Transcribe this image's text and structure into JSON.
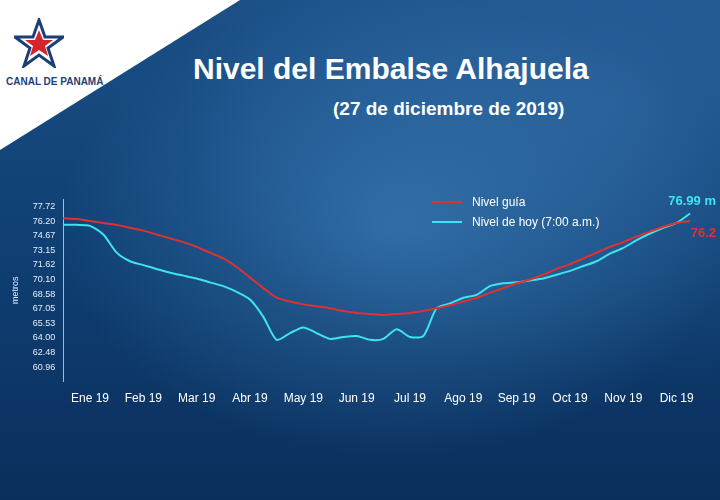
{
  "header": {
    "logo": "CANAL DE PANAMÁ"
  },
  "chart_data": {
    "type": "line",
    "title": "Nivel del Embalse Alhajuela",
    "subtitle": "(27 de diciembre de 2019)",
    "y_label": "metros",
    "categories": [
      null,
      null,
      "Ene 19",
      null,
      null,
      null,
      "Feb 19",
      null,
      null,
      null,
      "Mar 19",
      null,
      null,
      null,
      "Abr 19",
      null,
      null,
      null,
      "May 19",
      null,
      null,
      null,
      "Jun 19",
      null,
      null,
      null,
      "Jul 19",
      null,
      null,
      null,
      "Ago 19",
      null,
      null,
      null,
      "Sep 19",
      null,
      null,
      null,
      "Oct 19",
      null,
      null,
      null,
      "Nov 19",
      null,
      null,
      null,
      "Dic 19",
      null
    ],
    "series": [
      {
        "name": "Nivel guía",
        "color": "#e0312f",
        "values": [
          76.5,
          76.4,
          76.2,
          76.0,
          75.8,
          75.5,
          75.2,
          74.8,
          74.4,
          74.0,
          73.5,
          72.9,
          72.3,
          71.4,
          70.3,
          69.2,
          68.2,
          67.8,
          67.5,
          67.3,
          67.1,
          66.8,
          66.6,
          66.5,
          66.4,
          66.5,
          66.6,
          66.8,
          67.1,
          67.4,
          67.8,
          68.2,
          68.7,
          69.2,
          69.7,
          70.1,
          70.6,
          71.2,
          71.7,
          72.3,
          72.9,
          73.5,
          74.0,
          74.6,
          75.1,
          75.6,
          76.0,
          76.2
        ]
      },
      {
        "name": "Nivel de hoy (7:00 a.m.)",
        "color": "#3ee3f2",
        "values": [
          75.8,
          75.8,
          75.7,
          74.8,
          72.9,
          72.0,
          71.6,
          71.2,
          70.8,
          70.5,
          70.2,
          69.8,
          69.4,
          68.8,
          68.0,
          66.2,
          63.8,
          64.5,
          65.1,
          64.5,
          63.9,
          64.1,
          64.2,
          63.8,
          63.9,
          64.9,
          64.1,
          64.2,
          67.1,
          67.6,
          68.2,
          68.5,
          69.4,
          69.7,
          69.8,
          70.0,
          70.2,
          70.6,
          71.0,
          71.5,
          72.0,
          72.8,
          73.4,
          74.2,
          74.9,
          75.5,
          76.0,
          76.99
        ]
      }
    ],
    "annotations": [
      {
        "text": "76.2",
        "color": "#e0312f"
      },
      {
        "text": "76.99 m",
        "color": "#3ee3f2"
      }
    ],
    "ylim": [
      59.44,
      78.5
    ],
    "yticks": [
      {
        "value": 60.96,
        "label": "60.96"
      },
      {
        "value": 62.48,
        "label": "62.48"
      },
      {
        "value": 64,
        "label": "64.00"
      },
      {
        "value": 65.53,
        "label": "65.53"
      },
      {
        "value": 67.05,
        "label": "67.05"
      },
      {
        "value": 68.58,
        "label": "68.58"
      },
      {
        "value": 70.1,
        "label": "70.10"
      },
      {
        "value": 71.62,
        "label": "71.62"
      },
      {
        "value": 73.15,
        "label": "73.15"
      },
      {
        "value": 74.67,
        "label": "74.67"
      },
      {
        "value": 76.2,
        "label": "76.20"
      },
      {
        "value": 77.72,
        "label": "77.72"
      }
    ],
    "grid": false,
    "legend": "top"
  }
}
